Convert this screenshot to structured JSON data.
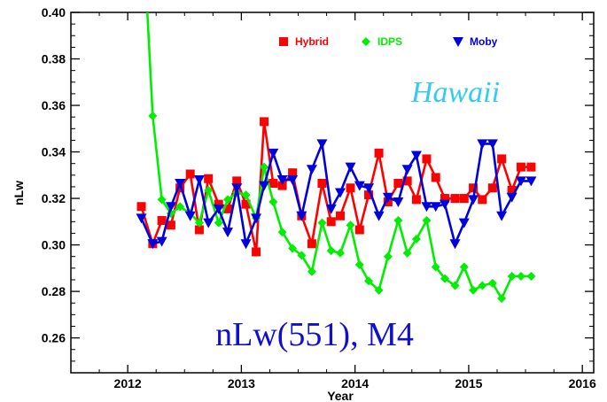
{
  "chart_data": {
    "type": "line",
    "xlabel": "Year",
    "ylabel": "nLw",
    "xlim": [
      2011.5,
      2016.1
    ],
    "ylim": [
      0.245,
      0.4
    ],
    "x_ticks": [
      2012,
      2013,
      2014,
      2015,
      2016
    ],
    "x_tick_labels": [
      "2012",
      "2013",
      "2014",
      "2015",
      "2016"
    ],
    "y_ticks": [
      0.26,
      0.28,
      0.3,
      0.32,
      0.34,
      0.36,
      0.38,
      0.4
    ],
    "y_tick_labels": [
      "0.26",
      "0.28",
      "0.30",
      "0.32",
      "0.34",
      "0.36",
      "0.38",
      "0.40"
    ],
    "grid": false,
    "legend_position": "top-right",
    "annotations": [
      {
        "text": "Hawaii",
        "color": "#33ccee"
      },
      {
        "text": "nLw(551), M4",
        "color": "#1010cc"
      }
    ],
    "series": [
      {
        "name": "Hybrid",
        "color": "#ff0000",
        "marker": "square",
        "x": [
          2012.12,
          2012.22,
          2012.3,
          2012.38,
          2012.46,
          2012.55,
          2012.63,
          2012.71,
          2012.8,
          2012.88,
          2012.96,
          2013.04,
          2013.13,
          2013.2,
          2013.28,
          2013.36,
          2013.45,
          2013.53,
          2013.62,
          2013.71,
          2013.79,
          2013.87,
          2013.96,
          2014.04,
          2014.12,
          2014.21,
          2014.29,
          2014.38,
          2014.46,
          2014.54,
          2014.63,
          2014.71,
          2014.79,
          2014.88,
          2014.96,
          2015.04,
          2015.12,
          2015.21,
          2015.29,
          2015.38,
          2015.46,
          2015.55
        ],
        "values": [
          0.3165,
          0.3005,
          0.3105,
          0.3085,
          0.3245,
          0.3305,
          0.3065,
          0.3285,
          0.3175,
          0.3155,
          0.3275,
          0.3175,
          0.297,
          0.353,
          0.3265,
          0.3255,
          0.331,
          0.3125,
          0.3005,
          0.3265,
          0.31,
          0.3125,
          0.3245,
          0.3065,
          0.3215,
          0.3395,
          0.3185,
          0.3265,
          0.3275,
          0.3195,
          0.337,
          0.329,
          0.32,
          0.32,
          0.32,
          0.3245,
          0.3195,
          0.3245,
          0.337,
          0.3235,
          0.3335,
          0.3335
        ]
      },
      {
        "name": "IDPS",
        "color": "#00ee00",
        "marker": "diamond",
        "x": [
          2012.12,
          2012.22,
          2012.3,
          2012.38,
          2012.46,
          2012.55,
          2012.63,
          2012.71,
          2012.8,
          2012.88,
          2012.96,
          2013.04,
          2013.13,
          2013.2,
          2013.28,
          2013.36,
          2013.45,
          2013.53,
          2013.62,
          2013.71,
          2013.79,
          2013.87,
          2013.96,
          2014.04,
          2014.12,
          2014.21,
          2014.29,
          2014.38,
          2014.46,
          2014.54,
          2014.63,
          2014.71,
          2014.79,
          2014.88,
          2014.96,
          2015.04,
          2015.12,
          2015.21,
          2015.29,
          2015.38,
          2015.46,
          2015.55
        ],
        "values": [
          0.45,
          0.3555,
          0.3195,
          0.3135,
          0.3165,
          0.3135,
          0.3095,
          0.3235,
          0.3095,
          0.3195,
          0.3225,
          0.3215,
          0.3115,
          0.3335,
          0.3185,
          0.3055,
          0.2985,
          0.2955,
          0.2885,
          0.3095,
          0.2975,
          0.2965,
          0.3085,
          0.2915,
          0.2845,
          0.2805,
          0.295,
          0.3105,
          0.2965,
          0.3025,
          0.3105,
          0.2905,
          0.2855,
          0.2825,
          0.2905,
          0.2805,
          0.2825,
          0.2835,
          0.277,
          0.2865,
          0.2865,
          0.2865
        ]
      },
      {
        "name": "Moby",
        "color": "#0000dd",
        "marker": "triangle-down",
        "x": [
          2012.12,
          2012.22,
          2012.3,
          2012.38,
          2012.46,
          2012.55,
          2012.63,
          2012.71,
          2012.8,
          2012.88,
          2012.96,
          2013.04,
          2013.13,
          2013.2,
          2013.28,
          2013.36,
          2013.45,
          2013.53,
          2013.62,
          2013.71,
          2013.79,
          2013.87,
          2013.96,
          2014.04,
          2014.12,
          2014.21,
          2014.29,
          2014.38,
          2014.46,
          2014.54,
          2014.63,
          2014.71,
          2014.79,
          2014.88,
          2014.96,
          2015.04,
          2015.12,
          2015.21,
          2015.29,
          2015.38,
          2015.46,
          2015.55
        ],
        "values": [
          0.3115,
          0.3005,
          0.3015,
          0.3165,
          0.3265,
          0.3125,
          0.328,
          0.3095,
          0.3155,
          0.3055,
          0.3245,
          0.3005,
          0.3115,
          0.3255,
          0.3395,
          0.328,
          0.328,
          0.3125,
          0.3325,
          0.3435,
          0.3155,
          0.3225,
          0.3335,
          0.3255,
          0.3245,
          0.3125,
          0.3205,
          0.3185,
          0.3325,
          0.3385,
          0.3165,
          0.3165,
          0.3175,
          0.3005,
          0.3095,
          0.3195,
          0.3435,
          0.3435,
          0.3125,
          0.3205,
          0.3275,
          0.3275
        ]
      }
    ]
  }
}
